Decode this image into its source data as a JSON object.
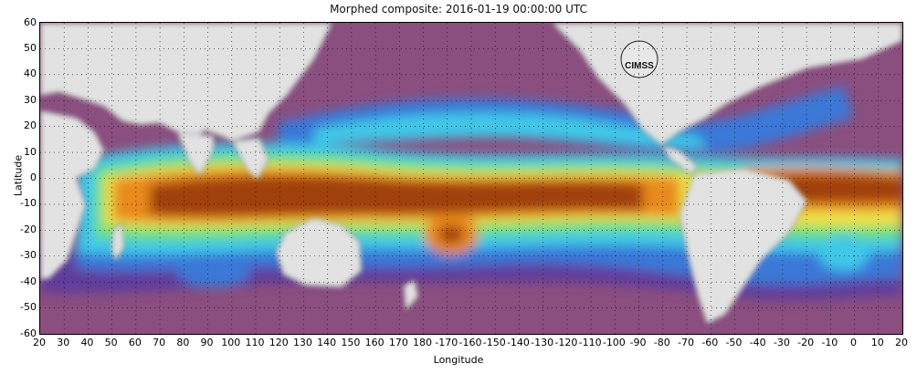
{
  "title": "Morphed composite: 2016-01-19 00:00:00 UTC",
  "logo_text": "CIMSS",
  "axes": {
    "xlabel": "Longitude",
    "ylabel": "Latitude",
    "x_ticks": [
      "20",
      "30",
      "40",
      "50",
      "60",
      "70",
      "80",
      "90",
      "100",
      "110",
      "120",
      "130",
      "140",
      "150",
      "160",
      "170",
      "180",
      "-170",
      "-160",
      "-150",
      "-140",
      "-130",
      "-120",
      "-110",
      "-100",
      "-90",
      "-80",
      "-70",
      "-60",
      "-50",
      "-40",
      "-30",
      "-20",
      "-10",
      "0",
      "10",
      "20"
    ],
    "y_ticks": [
      "60",
      "50",
      "40",
      "30",
      "20",
      "10",
      "0",
      "-10",
      "-20",
      "-30",
      "-40",
      "-50",
      "-60"
    ],
    "lon_range": [
      20,
      380
    ],
    "lat_range": [
      -60,
      60
    ],
    "grid": true
  },
  "colors": {
    "land": "#e2e2e2",
    "dry": "#8a4e7f",
    "moist_blue": "#3a78d8",
    "moist_cyan": "#40c8e8",
    "green": "#6ee07a",
    "yellow": "#f0e04a",
    "orange": "#e88a1a",
    "brown": "#a0400c"
  }
}
